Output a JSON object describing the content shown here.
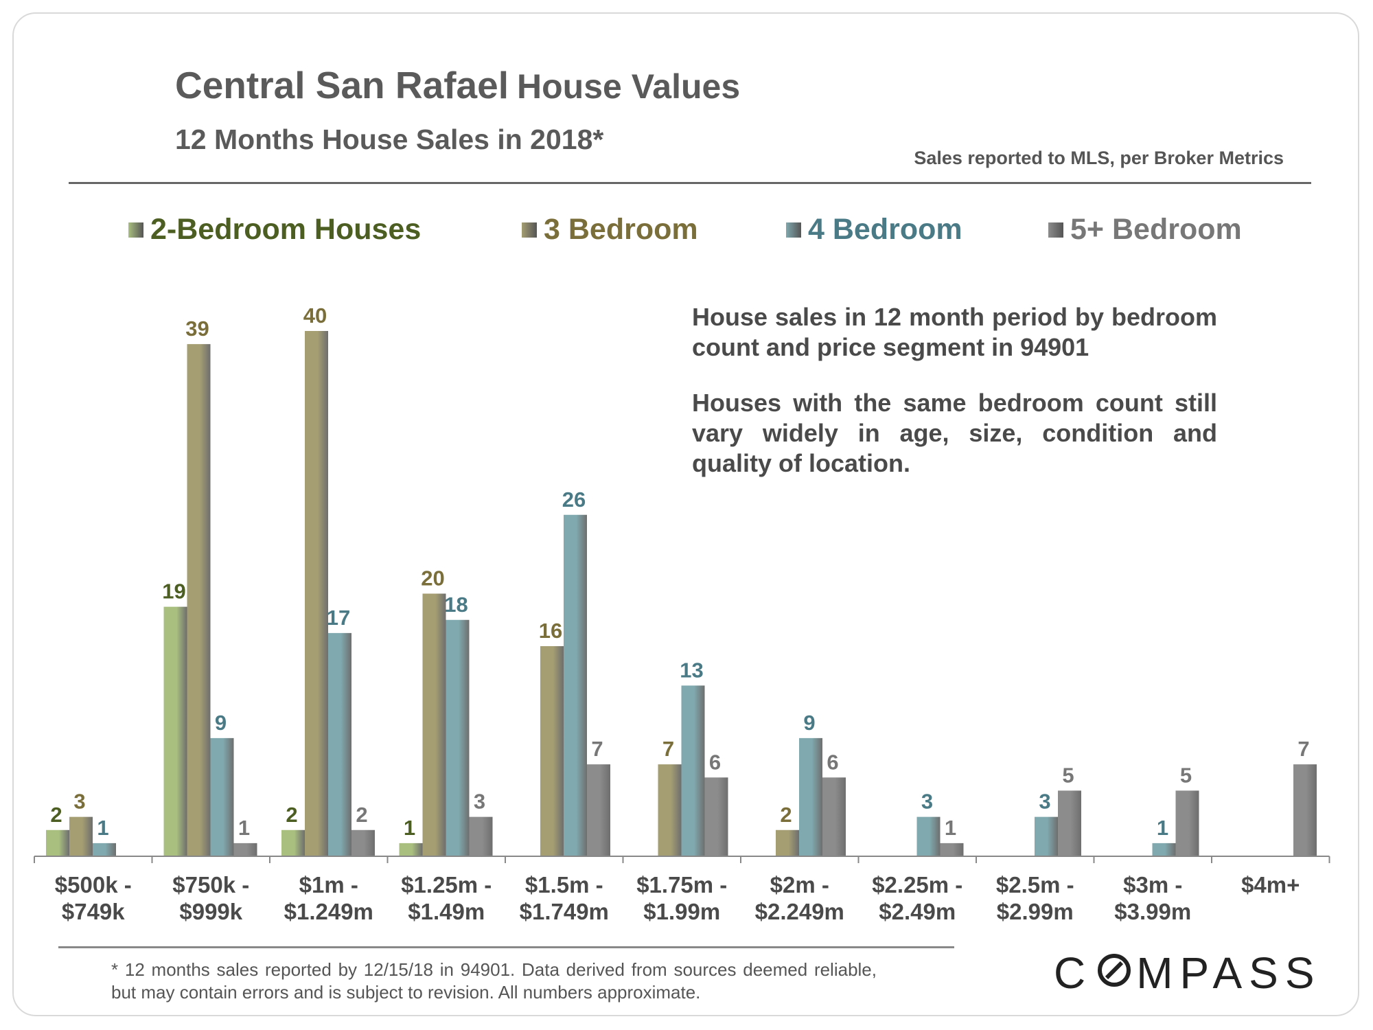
{
  "title": {
    "place": "Central San Rafael",
    "rest": "House Values"
  },
  "subtitle": "12 Months House Sales in 2018*",
  "source_note": "Sales reported to MLS, per Broker Metrics",
  "annotation": {
    "p1": "House sales in 12 month period by bedroom count and price segment in 94901",
    "p2": "Houses with the same bedroom count still vary widely in age, size, condition and quality of location."
  },
  "footnote": "* 12 months sales reported by 12/15/18 in 94901. Data derived from sources deemed reliable, but may contain errors and is subject to revision. All numbers approximate.",
  "logo": {
    "part1": "C",
    "part2": "MPASS",
    "mark": "compass-o-mark"
  },
  "colors": {
    "two_bed": "#a9bf7f",
    "three_bed": "#a59e72",
    "four_bed": "#7fa9ae",
    "five_bed": "#8c8c8c",
    "two_bed_text": "#4d5e23",
    "three_bed_text": "#7a6e3a",
    "four_bed_text": "#4a7a85",
    "five_bed_text": "#777777"
  },
  "chart_data": {
    "type": "bar",
    "title": "Central San Rafael House Values",
    "subtitle": "12 Months House Sales in 2018*",
    "xlabel": "",
    "ylabel": "",
    "ylim": [
      0,
      40
    ],
    "grid": false,
    "legend_position": "top",
    "categories": [
      [
        "$500k -",
        "$749k"
      ],
      [
        "$750k -",
        "$999k"
      ],
      [
        "$1m -",
        "$1.249m"
      ],
      [
        "$1.25m -",
        "$1.49m"
      ],
      [
        "$1.5m -",
        "$1.749m"
      ],
      [
        "$1.75m -",
        "$1.99m"
      ],
      [
        "$2m -",
        "$2.249m"
      ],
      [
        "$2.25m -",
        "$2.49m"
      ],
      [
        "$2.5m -",
        "$2.99m"
      ],
      [
        "$3m -",
        "$3.99m"
      ],
      [
        "$4m+",
        ""
      ]
    ],
    "series": [
      {
        "name": "2-Bedroom Houses",
        "values": [
          2,
          19,
          2,
          1,
          null,
          null,
          null,
          null,
          null,
          null,
          null
        ]
      },
      {
        "name": "3 Bedroom",
        "values": [
          3,
          39,
          40,
          20,
          16,
          7,
          2,
          null,
          null,
          null,
          null
        ]
      },
      {
        "name": "4 Bedroom",
        "values": [
          1,
          9,
          17,
          18,
          26,
          13,
          9,
          3,
          3,
          1,
          null
        ]
      },
      {
        "name": "5+ Bedroom",
        "values": [
          null,
          1,
          2,
          3,
          7,
          6,
          6,
          1,
          5,
          5,
          7
        ]
      }
    ]
  }
}
